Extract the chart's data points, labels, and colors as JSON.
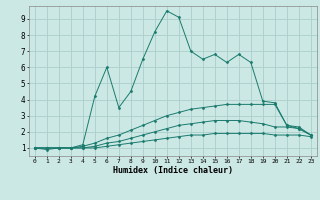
{
  "xlabel": "Humidex (Indice chaleur)",
  "bg_color": "#cce8e4",
  "grid_color": "#aaceca",
  "line_color": "#1a7a6e",
  "xlim": [
    -0.5,
    23.5
  ],
  "ylim": [
    0.5,
    9.8
  ],
  "xticks": [
    0,
    1,
    2,
    3,
    4,
    5,
    6,
    7,
    8,
    9,
    10,
    11,
    12,
    13,
    14,
    15,
    16,
    17,
    18,
    19,
    20,
    21,
    22,
    23
  ],
  "yticks": [
    1,
    2,
    3,
    4,
    5,
    6,
    7,
    8,
    9
  ],
  "series": [
    [
      1.0,
      0.9,
      1.0,
      1.0,
      1.2,
      4.2,
      6.0,
      3.5,
      4.5,
      6.5,
      8.2,
      9.5,
      9.1,
      7.0,
      6.5,
      6.8,
      6.3,
      6.8,
      6.3,
      3.9,
      3.8,
      2.4,
      2.2,
      1.8
    ],
    [
      1.0,
      1.0,
      1.0,
      1.0,
      1.1,
      1.3,
      1.6,
      1.8,
      2.1,
      2.4,
      2.7,
      3.0,
      3.2,
      3.4,
      3.5,
      3.6,
      3.7,
      3.7,
      3.7,
      3.7,
      3.7,
      2.4,
      2.3,
      1.8
    ],
    [
      1.0,
      1.0,
      1.0,
      1.0,
      1.0,
      1.1,
      1.3,
      1.4,
      1.6,
      1.8,
      2.0,
      2.2,
      2.4,
      2.5,
      2.6,
      2.7,
      2.7,
      2.7,
      2.6,
      2.5,
      2.3,
      2.3,
      2.2,
      1.8
    ],
    [
      1.0,
      1.0,
      1.0,
      1.0,
      1.0,
      1.0,
      1.1,
      1.2,
      1.3,
      1.4,
      1.5,
      1.6,
      1.7,
      1.8,
      1.8,
      1.9,
      1.9,
      1.9,
      1.9,
      1.9,
      1.8,
      1.8,
      1.8,
      1.7
    ]
  ]
}
